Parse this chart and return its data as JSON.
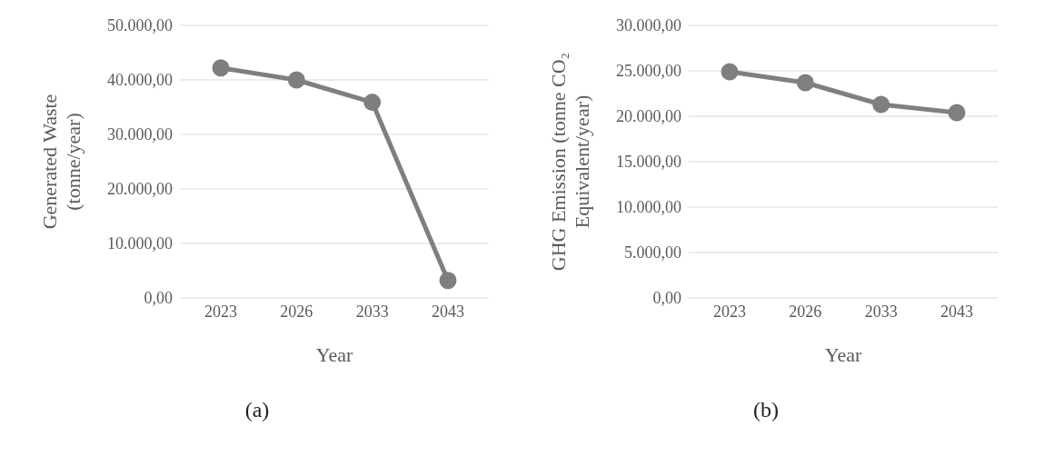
{
  "chart_data": [
    {
      "type": "line",
      "xlabel": "Year",
      "ylabel": "Generated Waste (tonne/year)",
      "categories": [
        "2023",
        "2026",
        "2033",
        "2043"
      ],
      "values": [
        42200,
        40000,
        35900,
        3200
      ],
      "color": "#7f7f7f",
      "ylim": [
        0,
        50000
      ],
      "yticks": [
        {
          "value": 0,
          "label": "0,00"
        },
        {
          "value": 10000,
          "label": "10.000,00"
        },
        {
          "value": 20000,
          "label": "20.000,00"
        },
        {
          "value": 30000,
          "label": "30.000,00"
        },
        {
          "value": 40000,
          "label": "40.000,00"
        },
        {
          "value": 50000,
          "label": "50.000,00"
        }
      ],
      "grid": "y",
      "marker": "circle",
      "annotations": [
        "(a)"
      ]
    },
    {
      "type": "line",
      "xlabel": "Year",
      "ylabel": "GHG Emission (tonne CO₂ Equivalent/year)",
      "categories": [
        "2023",
        "2026",
        "2033",
        "2043"
      ],
      "values": [
        24900,
        23700,
        21300,
        20400
      ],
      "color": "#7f7f7f",
      "ylim": [
        0,
        30000
      ],
      "yticks": [
        {
          "value": 0,
          "label": "0,00"
        },
        {
          "value": 5000,
          "label": "5.000,00"
        },
        {
          "value": 10000,
          "label": "10.000,00"
        },
        {
          "value": 15000,
          "label": "15.000,00"
        },
        {
          "value": 20000,
          "label": "20.000,00"
        },
        {
          "value": 25000,
          "label": "25.000,00"
        },
        {
          "value": 30000,
          "label": "30.000,00"
        }
      ],
      "grid": "y",
      "marker": "circle",
      "annotations": [
        "(b)"
      ]
    }
  ]
}
